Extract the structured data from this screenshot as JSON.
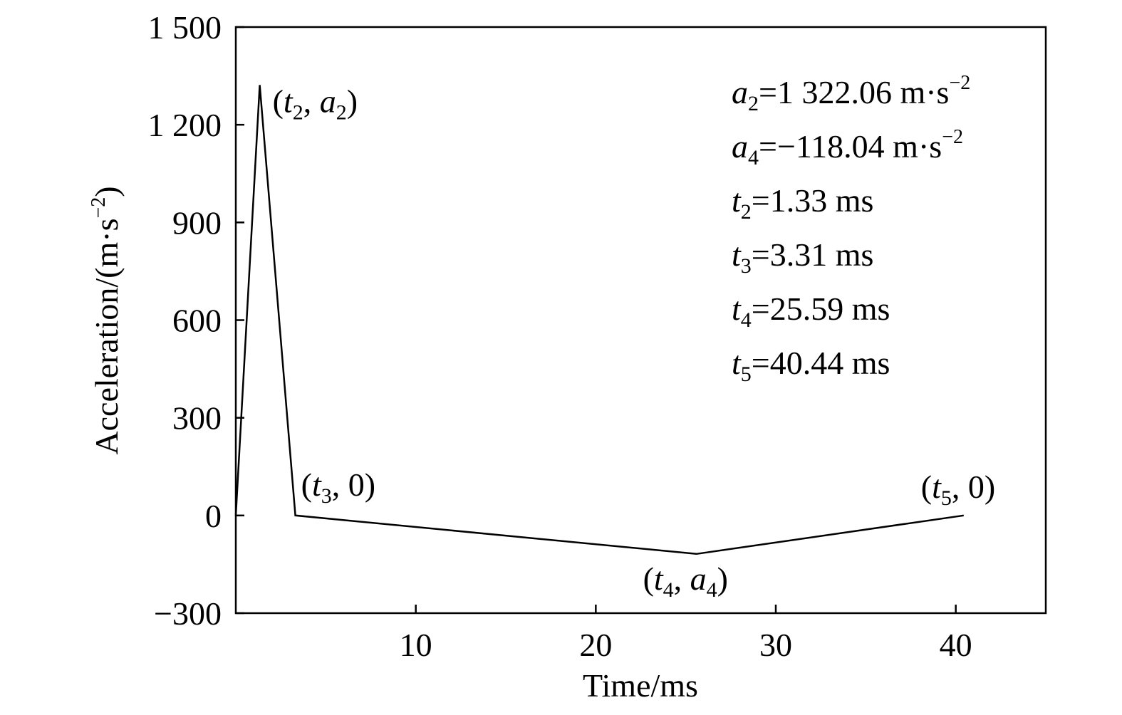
{
  "chart_data": {
    "type": "line",
    "xlabel": "Time/ms",
    "ylabel": "Acceleration/(m·s",
    "ylabel_unit_power": "−2",
    "ylabel_close": ")",
    "xlim": [
      0,
      45
    ],
    "ylim": [
      -300,
      1500
    ],
    "x_ticks": [
      10,
      20,
      30,
      40
    ],
    "x_tick_labels": [
      "10",
      "20",
      "30",
      "40"
    ],
    "y_ticks": [
      -300,
      0,
      300,
      600,
      900,
      1200,
      1500
    ],
    "y_tick_labels": [
      "−300",
      "0",
      "300",
      "600",
      "900",
      "1 200",
      "1 500"
    ],
    "grid": false,
    "color": "#000000",
    "series": [
      {
        "x": [
          0,
          1.33,
          3.31,
          25.59,
          40.44
        ],
        "y": [
          0,
          1322.06,
          0,
          -118.04,
          0
        ]
      }
    ],
    "point_labels": [
      {
        "x": 1.33,
        "y": 1322.06,
        "t": "t",
        "t_sub": "2",
        "sep": ", ",
        "v": "a",
        "v_sub": "2",
        "v_italic": true,
        "open": "(",
        "close": ")"
      },
      {
        "x": 3.31,
        "y": 0,
        "t": "t",
        "t_sub": "3",
        "sep": ", ",
        "v": "0",
        "v_sub": "",
        "v_italic": false,
        "open": "(",
        "close": ")"
      },
      {
        "x": 25.59,
        "y": -118.04,
        "t": "t",
        "t_sub": "4",
        "sep": ", ",
        "v": "a",
        "v_sub": "4",
        "v_italic": true,
        "open": "(",
        "close": ")"
      },
      {
        "x": 40.44,
        "y": 0,
        "t": "t",
        "t_sub": "5",
        "sep": ", ",
        "v": "0",
        "v_sub": "",
        "v_italic": false,
        "open": "(",
        "close": ")"
      }
    ],
    "parameters": [
      {
        "sym": "a",
        "sub": "2",
        "value": "=1 322.06 m·s",
        "sup": "−2"
      },
      {
        "sym": "a",
        "sub": "4",
        "value": "=−118.04 m·s",
        "sup": "−2"
      },
      {
        "sym": "t",
        "sub": "2",
        "value": "=1.33 ms",
        "sup": ""
      },
      {
        "sym": "t",
        "sub": "3",
        "value": "=3.31 ms",
        "sup": ""
      },
      {
        "sym": "t",
        "sub": "4",
        "value": "=25.59 ms",
        "sup": ""
      },
      {
        "sym": "t",
        "sub": "5",
        "value": "=40.44 ms",
        "sup": ""
      }
    ]
  }
}
